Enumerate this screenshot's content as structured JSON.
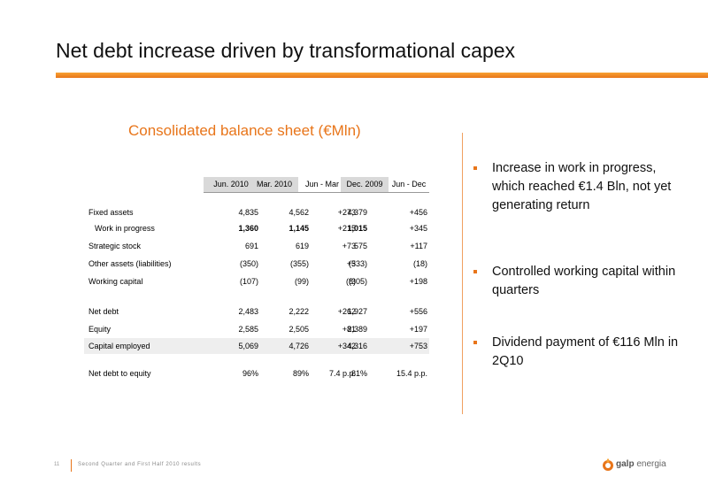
{
  "slide": {
    "title": "Net debt increase driven by transformational capex",
    "table_title": "Consolidated balance sheet (€Mln)"
  },
  "table": {
    "headers": [
      "Jun. 2010",
      "Mar. 2010",
      "Jun - Mar",
      "Dec. 2009",
      "Jun - Dec"
    ],
    "rows": [
      {
        "label": "Fixed assets",
        "values": [
          "4,835",
          "4,562",
          "+273",
          "4,379",
          "+456"
        ]
      },
      {
        "label": "Work in progress",
        "values": [
          "1,360",
          "1,145",
          "+215",
          "1,015",
          "+345"
        ]
      },
      {
        "label": "Strategic stock",
        "values": [
          "691",
          "619",
          "+73",
          "575",
          "+117"
        ]
      },
      {
        "label": "Other assets (liabilities)",
        "values": [
          "(350)",
          "(355)",
          "+5",
          "(333)",
          "(18)"
        ]
      },
      {
        "label": "Working capital",
        "values": [
          "(107)",
          "(99)",
          "(8)",
          "(305)",
          "+198"
        ]
      },
      {
        "label": "Net debt",
        "values": [
          "2,483",
          "2,222",
          "+262",
          "1,927",
          "+556"
        ]
      },
      {
        "label": "Equity",
        "values": [
          "2,585",
          "2,505",
          "+81",
          "2,389",
          "+197"
        ]
      },
      {
        "label": "Capital employed",
        "values": [
          "5,069",
          "4,726",
          "+342",
          "4,316",
          "+753"
        ]
      },
      {
        "label": "Net debt to equity",
        "values": [
          "96%",
          "89%",
          "7.4 p.p.",
          "81%",
          "15.4 p.p."
        ]
      }
    ]
  },
  "bullets": [
    "Increase in work in progress, which reached €1.4 Bln, not yet generating return",
    "Controlled working capital within quarters",
    "Dividend payment of €116 Mln in 2Q10"
  ],
  "footer": {
    "page_number": "11",
    "text": "Second Quarter and First Half 2010 results"
  },
  "logo": {
    "brand": "galp",
    "suffix": "energia"
  },
  "colors": {
    "accent": "#e8751a",
    "header_gray": "#d9d9d9",
    "row_shade": "#eeeeee"
  }
}
